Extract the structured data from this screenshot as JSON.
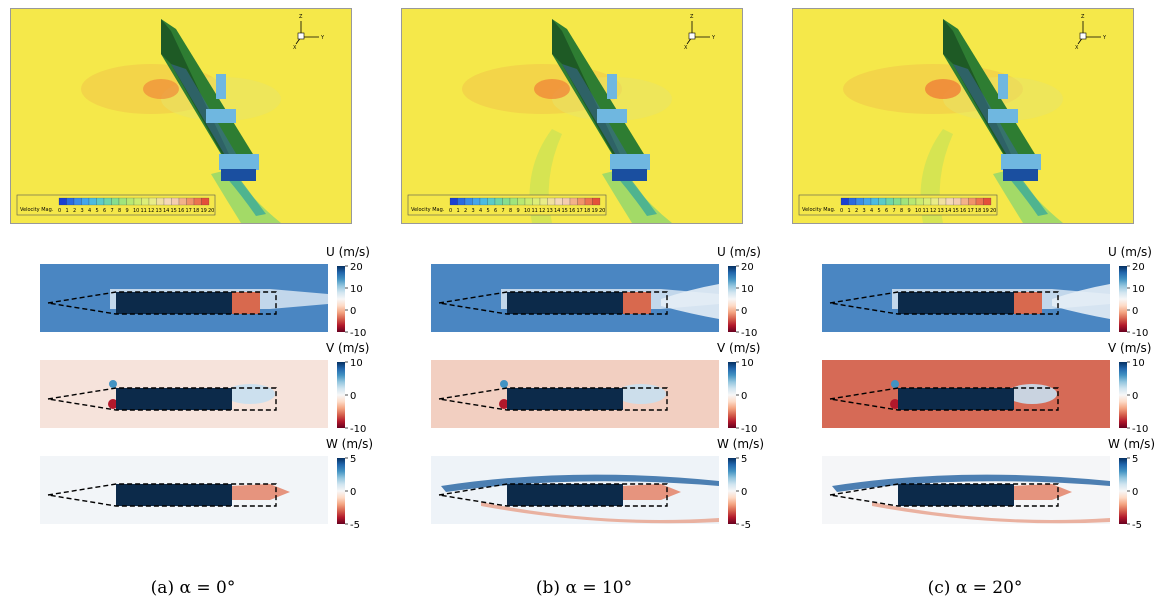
{
  "panels": [
    {
      "id": "a",
      "caption": "(a) α = 0°",
      "alpha_deg": 0
    },
    {
      "id": "b",
      "caption": "(b) α = 10°",
      "alpha_deg": 10
    },
    {
      "id": "c",
      "caption": "(c) α = 20°",
      "alpha_deg": 20
    }
  ],
  "render": {
    "legend_title": "Velocity Mag.",
    "legend_ticks": [
      "0",
      "1",
      "2",
      "3",
      "4",
      "5",
      "6",
      "7",
      "8",
      "9",
      "10",
      "11",
      "12",
      "13",
      "14",
      "15",
      "16",
      "17",
      "18",
      "19",
      "20"
    ],
    "axis_labels": {
      "z": "Z",
      "y": "Y",
      "x": "X"
    }
  },
  "fields": [
    {
      "key": "U",
      "label": "U (m/s)",
      "ticks": [
        "20",
        "10",
        "0",
        "-10"
      ]
    },
    {
      "key": "V",
      "label": "V (m/s)",
      "ticks": [
        "10",
        "0",
        "-10"
      ]
    },
    {
      "key": "W",
      "label": "W (m/s)",
      "ticks": [
        "5",
        "0",
        "-5"
      ]
    }
  ],
  "colors": {
    "ship_hull": "#2e7d32",
    "background_flow": "#f5e84a",
    "obstacle": "#0c2a4a",
    "positive": "#2166ac",
    "negative": "#b2182b"
  }
}
